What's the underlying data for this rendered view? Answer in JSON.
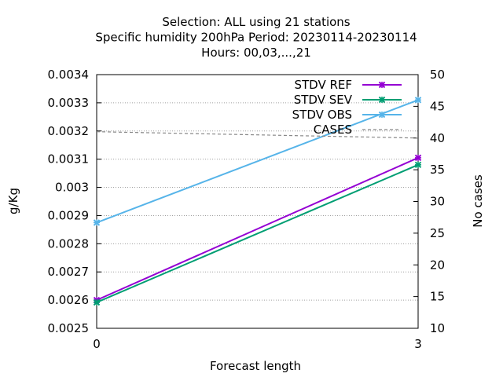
{
  "chart_data": {
    "type": "line",
    "title_lines": [
      "Selection: ALL using    21 stations",
      "Specific humidity 200hPa   Period: 20230114-20230114",
      "Hours:  00,03,...,21"
    ],
    "xlabel": "Forecast length",
    "ylabel": "g/Kg",
    "y2label": "No cases",
    "x": [
      0,
      3
    ],
    "x_ticks": [
      "0",
      "3"
    ],
    "xlim": [
      0,
      3
    ],
    "ylim": [
      0.0025,
      0.0034
    ],
    "y_ticks": [
      "0.0025",
      "0.0026",
      "0.0027",
      "0.0028",
      "0.0029",
      "0.003",
      "0.0031",
      "0.0032",
      "0.0033",
      "0.0034"
    ],
    "y2lim": [
      10,
      50
    ],
    "y2_ticks": [
      "10",
      "15",
      "20",
      "25",
      "30",
      "35",
      "40",
      "45",
      "50"
    ],
    "grid": true,
    "legend_position": "top-right",
    "series": [
      {
        "name": "STDV REF",
        "axis": "y",
        "color": "#9400d3",
        "marker": "x",
        "values": [
          0.0026,
          0.003105
        ]
      },
      {
        "name": "STDV SEV",
        "axis": "y",
        "color": "#009e73",
        "marker": "x",
        "values": [
          0.002592,
          0.00308
        ]
      },
      {
        "name": "STDV OBS",
        "axis": "y",
        "color": "#56b4e9",
        "marker": "x",
        "values": [
          0.002875,
          0.00331
        ]
      },
      {
        "name": "CASES",
        "axis": "y2",
        "color": "#888888",
        "marker": "none",
        "dashed": true,
        "values": [
          41,
          40
        ]
      }
    ]
  }
}
